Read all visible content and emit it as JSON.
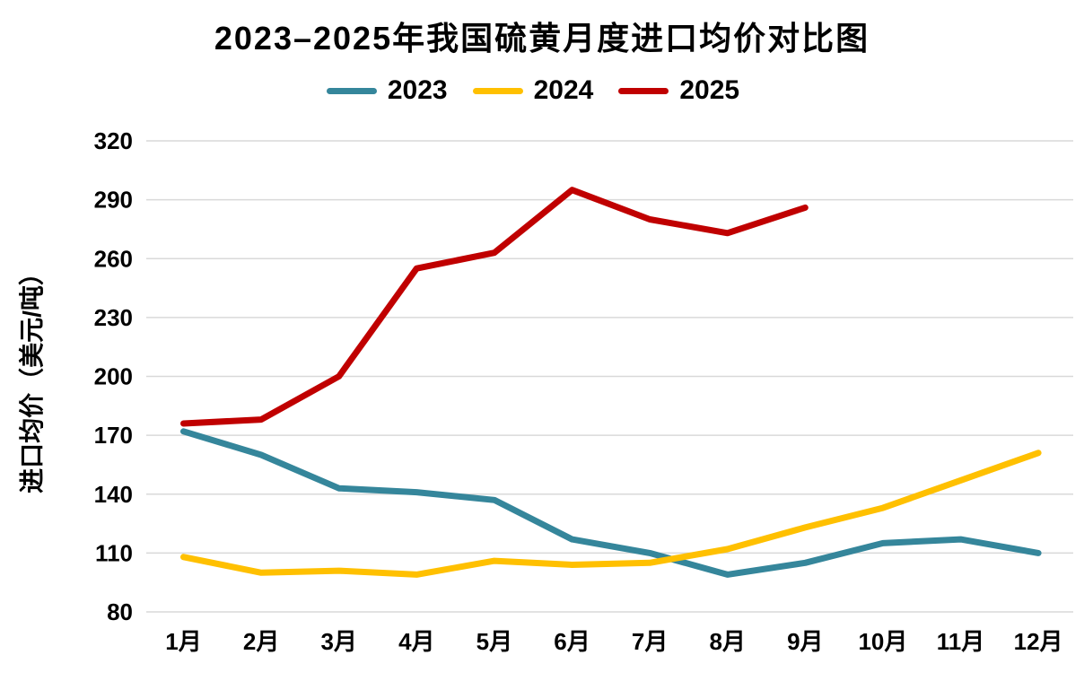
{
  "chart_data": {
    "type": "line",
    "title": "2023–2025年我国硫黄月度进口均价对比图",
    "ylabel": "进口均价（美元/吨）",
    "categories": [
      "1月",
      "2月",
      "3月",
      "4月",
      "5月",
      "6月",
      "7月",
      "8月",
      "9月",
      "10月",
      "11月",
      "12月"
    ],
    "ylim": [
      80,
      320
    ],
    "yticks": [
      80,
      110,
      140,
      170,
      200,
      230,
      260,
      290,
      320
    ],
    "grid": "horizontal-only",
    "legend_position": "top",
    "colors": {
      "gridline": "#D9D9D9",
      "text": "#000000",
      "background": "#FFFFFF"
    },
    "series": [
      {
        "name": "2023",
        "color": "#35869B",
        "values": [
          172,
          160,
          143,
          141,
          137,
          117,
          110,
          99,
          105,
          115,
          117,
          110
        ]
      },
      {
        "name": "2024",
        "color": "#FFC000",
        "values": [
          108,
          100,
          101,
          99,
          106,
          104,
          105,
          112,
          123,
          133,
          147,
          161
        ]
      },
      {
        "name": "2025",
        "color": "#C00000",
        "values": [
          176,
          178,
          200,
          255,
          263,
          295,
          280,
          273,
          286,
          null,
          null,
          null
        ]
      }
    ]
  }
}
